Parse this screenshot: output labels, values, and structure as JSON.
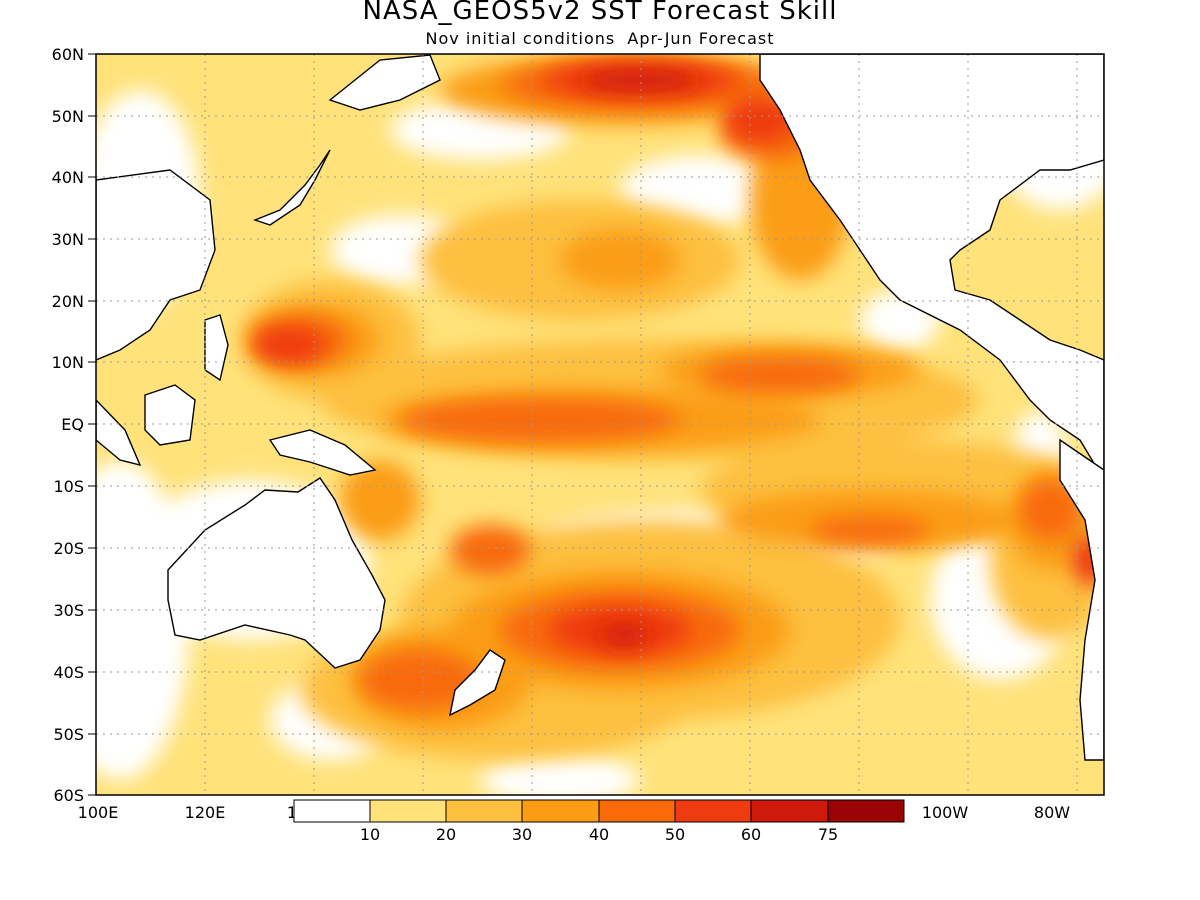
{
  "title": "NASA_GEOS5v2 SST Forecast Skill",
  "subtitle": "Nov initial conditions  Apr-Jun Forecast",
  "map": {
    "lat_labels": [
      "60N",
      "50N",
      "40N",
      "30N",
      "20N",
      "10N",
      "EQ",
      "10S",
      "20S",
      "30S",
      "40S",
      "50S",
      "60S"
    ],
    "lon_labels": [
      "100E",
      "120E",
      "1",
      "100W",
      "80W"
    ],
    "lat_range": [
      -60,
      60
    ],
    "lon_range_deg_east": [
      100,
      285
    ],
    "grid": "dotted"
  },
  "legend": {
    "labels": [
      "10",
      "20",
      "30",
      "40",
      "50",
      "60",
      "75"
    ],
    "colors": [
      "#ffffff",
      "#ffe27a",
      "#fdc040",
      "#fb9d14",
      "#f86b08",
      "#ef3b10",
      "#ce1a0a",
      "#9a0303"
    ]
  }
}
